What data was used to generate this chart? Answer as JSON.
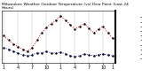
{
  "title": "Milwaukee Weather Outdoor Temperature (vs) Dew Point (Last 24 Hours)",
  "temp": [
    55,
    50,
    46,
    43,
    40,
    38,
    42,
    50,
    58,
    64,
    68,
    72,
    76,
    72,
    67,
    62,
    65,
    68,
    63,
    58,
    62,
    65,
    58,
    52
  ],
  "dew": [
    42,
    40,
    38,
    36,
    34,
    33,
    34,
    36,
    36,
    38,
    36,
    36,
    37,
    35,
    33,
    32,
    33,
    35,
    34,
    33,
    34,
    35,
    34,
    33
  ],
  "temp_color": "#cc0000",
  "dew_color": "#0000cc",
  "marker_color": "#000000",
  "bg_color": "#ffffff",
  "grid_color": "#999999",
  "ylim_min": 25,
  "ylim_max": 82,
  "ytick_labels": [
    "75",
    "70",
    "65",
    "60",
    "55",
    "50",
    "45",
    "40",
    "35",
    "30"
  ],
  "ytick_values": [
    75,
    70,
    65,
    60,
    55,
    50,
    45,
    40,
    35,
    30
  ],
  "xtick_positions": [
    0,
    3,
    6,
    9,
    12,
    15,
    18,
    21,
    23
  ],
  "xtick_labels": [
    "1",
    "4",
    "7",
    "10",
    "1",
    "4",
    "7",
    "10",
    "1"
  ],
  "grid_positions": [
    0,
    3,
    6,
    9,
    12,
    15,
    18,
    21
  ],
  "num_points": 24,
  "title_fontsize": 3.2,
  "tick_fontsize": 3.5,
  "linewidth": 0.7,
  "markersize": 1.5
}
